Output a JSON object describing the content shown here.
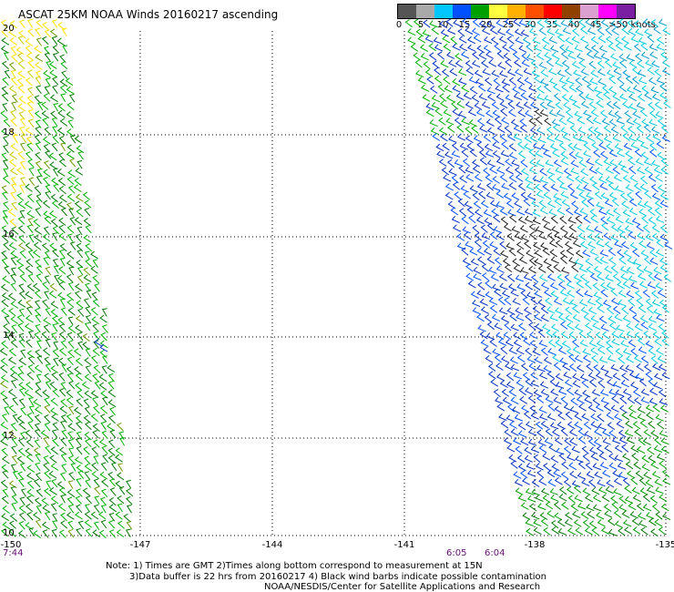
{
  "title": "ASCAT 25KM NOAA Winds 20160217 ascending",
  "legend": {
    "colors": [
      "#555555",
      "#a9a9a9",
      "#00c8ff",
      "#0050ff",
      "#00a000",
      "#ffff40",
      "#ffb000",
      "#ff5000",
      "#ff0000",
      "#904000",
      "#dca0d0",
      "#ff00ff",
      "#7a1fa2"
    ],
    "labels": [
      "0",
      "5",
      "10",
      "15",
      "20",
      "25",
      "30",
      "35",
      "40",
      "45",
      ">50 knots"
    ]
  },
  "map": {
    "lon_range": [
      -150,
      -135
    ],
    "lat_range": [
      10,
      20
    ],
    "x_ticks": [
      "-150",
      "-147",
      "-144",
      "-141",
      "-138",
      "-135"
    ],
    "y_ticks": [
      "20",
      "18",
      "16",
      "14",
      "12",
      "10"
    ],
    "grid": "dotted"
  },
  "times": {
    "left": "7:44",
    "mid1": "6:05",
    "mid2": "6:04"
  },
  "notes": {
    "line1": "Note: 1) Times are GMT 2)Times along bottom correspond to measurement at 15N",
    "line2": "3)Data buffer is 22 hrs from 20160217 4) Black wind barbs indicate possible contamination",
    "line3": "NOAA/NESDIS/Center for Satellite Applications and Research"
  }
}
